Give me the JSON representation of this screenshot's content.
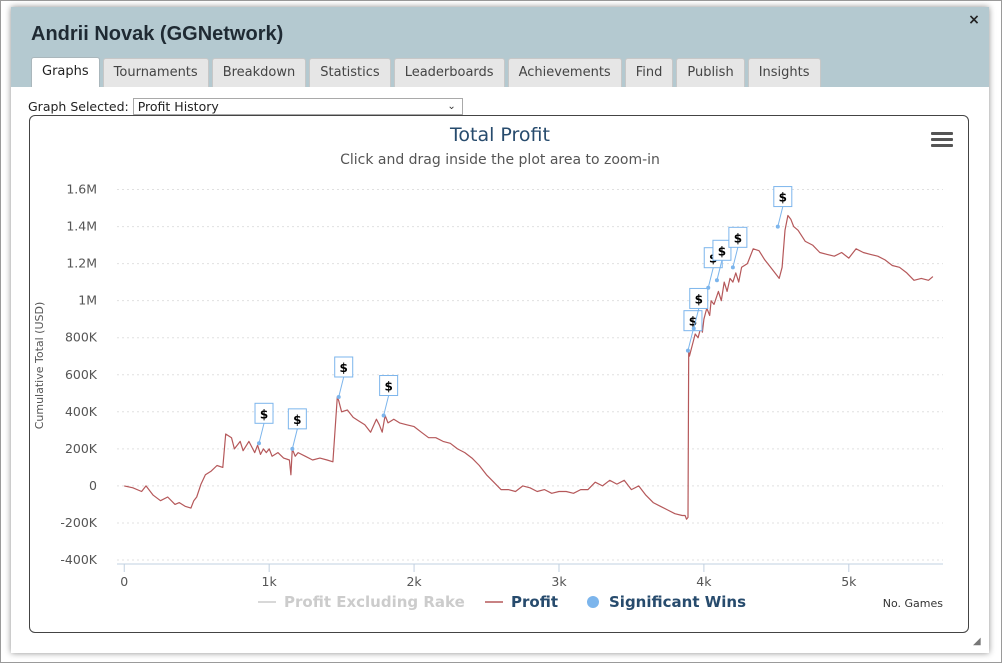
{
  "window": {
    "title": "Andrii Novak (GGNetwork)",
    "close_icon": "×",
    "resize_icon": "◢"
  },
  "tabs": [
    {
      "label": "Graphs",
      "active": true
    },
    {
      "label": "Tournaments",
      "active": false
    },
    {
      "label": "Breakdown",
      "active": false
    },
    {
      "label": "Statistics",
      "active": false
    },
    {
      "label": "Leaderboards",
      "active": false
    },
    {
      "label": "Achievements",
      "active": false
    },
    {
      "label": "Find",
      "active": false
    },
    {
      "label": "Publish",
      "active": false
    },
    {
      "label": "Insights",
      "active": false
    }
  ],
  "graph_select": {
    "label": "Graph Selected:",
    "value": "Profit History"
  },
  "colors": {
    "profit_line": "#b5585a",
    "rake_line": "#cccccc",
    "significant_wins": "#7cb5ec",
    "title": "#274b6d",
    "legend_text": "#274b6d",
    "legend_hidden": "#cccccc",
    "titlebar": "#b4c9d0"
  },
  "chart_data": {
    "type": "line",
    "title": "Total Profit",
    "subtitle": "Click and drag inside the plot area to zoom-in",
    "xlabel": "No. Games",
    "ylabel": "Cumulative Total (USD)",
    "xlim": [
      -50,
      5650
    ],
    "ylim": [
      -400000,
      1700000
    ],
    "x_ticks": [
      {
        "value": 0,
        "label": "0"
      },
      {
        "value": 1000,
        "label": "1k"
      },
      {
        "value": 2000,
        "label": "2k"
      },
      {
        "value": 3000,
        "label": "3k"
      },
      {
        "value": 4000,
        "label": "4k"
      },
      {
        "value": 5000,
        "label": "5k"
      }
    ],
    "y_ticks": [
      {
        "value": -400000,
        "label": "-400K"
      },
      {
        "value": -200000,
        "label": "-200K"
      },
      {
        "value": 0,
        "label": "0"
      },
      {
        "value": 200000,
        "label": "200K"
      },
      {
        "value": 400000,
        "label": "400K"
      },
      {
        "value": 600000,
        "label": "600K"
      },
      {
        "value": 800000,
        "label": "800K"
      },
      {
        "value": 1000000,
        "label": "1M"
      },
      {
        "value": 1200000,
        "label": "1.2M"
      },
      {
        "value": 1400000,
        "label": "1.4M"
      },
      {
        "value": 1600000,
        "label": "1.6M"
      }
    ],
    "grid": true,
    "legend": [
      {
        "name": "Profit Excluding Rake",
        "visible": false
      },
      {
        "name": "Profit",
        "visible": true
      },
      {
        "name": "Significant Wins",
        "visible": true
      }
    ],
    "legend_position": "bottom-center",
    "series": [
      {
        "name": "Profit",
        "x": [
          0,
          60,
          120,
          150,
          200,
          250,
          300,
          350,
          380,
          420,
          460,
          480,
          500,
          530,
          560,
          600,
          640,
          680,
          700,
          740,
          760,
          800,
          820,
          860,
          900,
          920,
          940,
          960,
          980,
          1000,
          1020,
          1060,
          1100,
          1140,
          1150,
          1160,
          1180,
          1200,
          1250,
          1300,
          1350,
          1400,
          1440,
          1470,
          1480,
          1500,
          1540,
          1580,
          1620,
          1660,
          1700,
          1740,
          1760,
          1780,
          1800,
          1820,
          1860,
          1900,
          1950,
          2000,
          2050,
          2100,
          2150,
          2200,
          2250,
          2300,
          2350,
          2400,
          2450,
          2500,
          2550,
          2600,
          2650,
          2700,
          2750,
          2800,
          2850,
          2900,
          2950,
          3000,
          3050,
          3100,
          3150,
          3200,
          3250,
          3300,
          3350,
          3400,
          3450,
          3500,
          3550,
          3600,
          3650,
          3700,
          3750,
          3800,
          3850,
          3870,
          3880,
          3890,
          3895,
          3900,
          3920,
          3940,
          3960,
          3980,
          3990,
          4000,
          4020,
          4040,
          4050,
          4070,
          4100,
          4120,
          4140,
          4160,
          4180,
          4200,
          4220,
          4240,
          4260,
          4300,
          4340,
          4380,
          4420,
          4460,
          4480,
          4500,
          4520,
          4540,
          4560,
          4580,
          4600,
          4620,
          4650,
          4700,
          4750,
          4800,
          4850,
          4900,
          4950,
          5000,
          5050,
          5100,
          5150,
          5200,
          5250,
          5300,
          5350,
          5400,
          5450,
          5500,
          5550,
          5580
        ],
        "y": [
          0,
          -10000,
          -30000,
          0,
          -50000,
          -80000,
          -60000,
          -100000,
          -90000,
          -110000,
          -120000,
          -80000,
          -60000,
          10000,
          60000,
          80000,
          110000,
          100000,
          280000,
          260000,
          200000,
          240000,
          190000,
          240000,
          180000,
          220000,
          170000,
          200000,
          180000,
          200000,
          160000,
          180000,
          150000,
          140000,
          60000,
          200000,
          160000,
          180000,
          160000,
          140000,
          150000,
          140000,
          130000,
          480000,
          460000,
          400000,
          410000,
          370000,
          350000,
          330000,
          290000,
          360000,
          330000,
          290000,
          380000,
          340000,
          360000,
          340000,
          330000,
          320000,
          290000,
          260000,
          260000,
          240000,
          230000,
          200000,
          180000,
          150000,
          110000,
          60000,
          20000,
          -20000,
          -20000,
          -30000,
          0,
          -10000,
          -30000,
          -20000,
          -40000,
          -30000,
          -30000,
          -40000,
          -20000,
          -20000,
          20000,
          0,
          30000,
          10000,
          30000,
          -20000,
          0,
          -50000,
          -90000,
          -110000,
          -130000,
          -150000,
          -160000,
          -160000,
          -180000,
          -170000,
          730000,
          700000,
          760000,
          820000,
          800000,
          860000,
          830000,
          900000,
          960000,
          920000,
          1000000,
          980000,
          1050000,
          1000000,
          1100000,
          1050000,
          1120000,
          1100000,
          1150000,
          1100000,
          1180000,
          1200000,
          1280000,
          1270000,
          1220000,
          1180000,
          1160000,
          1140000,
          1120000,
          1180000,
          1380000,
          1460000,
          1440000,
          1400000,
          1380000,
          1320000,
          1300000,
          1260000,
          1250000,
          1240000,
          1260000,
          1230000,
          1280000,
          1260000,
          1250000,
          1240000,
          1220000,
          1190000,
          1180000,
          1150000,
          1110000,
          1120000,
          1110000,
          1130000
        ]
      }
    ],
    "significant_wins": [
      {
        "x": 930,
        "y": 230000,
        "label": "$"
      },
      {
        "x": 1160,
        "y": 200000,
        "label": "$"
      },
      {
        "x": 1480,
        "y": 480000,
        "label": "$"
      },
      {
        "x": 1790,
        "y": 380000,
        "label": "$"
      },
      {
        "x": 3890,
        "y": 730000,
        "label": "$"
      },
      {
        "x": 3930,
        "y": 850000,
        "label": "$"
      },
      {
        "x": 4030,
        "y": 1070000,
        "label": "$"
      },
      {
        "x": 4090,
        "y": 1110000,
        "label": "$"
      },
      {
        "x": 4200,
        "y": 1180000,
        "label": "$"
      },
      {
        "x": 4510,
        "y": 1400000,
        "label": "$"
      }
    ]
  }
}
